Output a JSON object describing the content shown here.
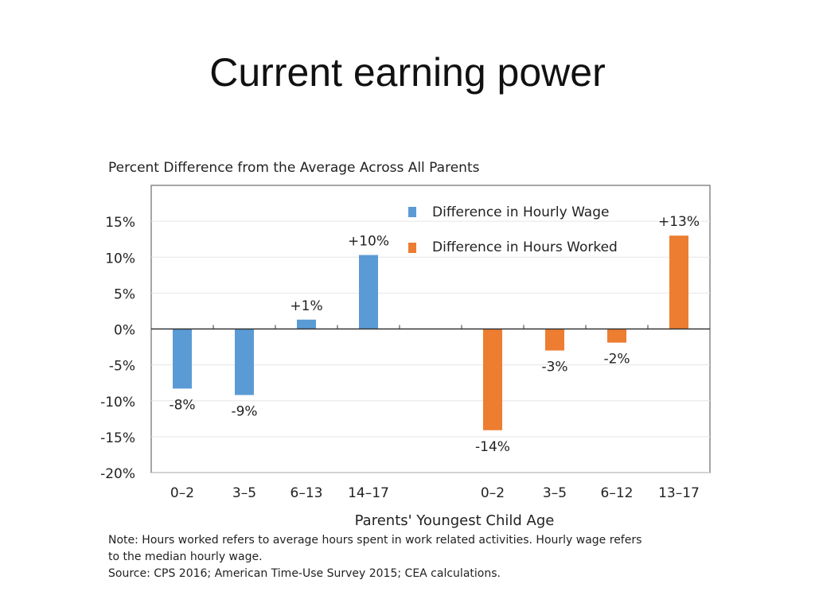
{
  "slide": {
    "title": "Current earning power"
  },
  "chart_data": {
    "type": "bar",
    "title": "Percent Difference from the Average Across All Parents",
    "xlabel": "Parents' Youngest Child Age",
    "ylabel": "",
    "ylim": [
      -20,
      20
    ],
    "yticks": [
      "15%",
      "10%",
      "5%",
      "0%",
      "-5%",
      "-10%",
      "-15%",
      "-20%"
    ],
    "ytick_values": [
      15,
      10,
      5,
      0,
      -5,
      -10,
      -15,
      -20
    ],
    "grid": true,
    "legend_position": "top-right",
    "series": [
      {
        "name": "Difference in Hourly Wage",
        "color": "#5b9bd5",
        "categories": [
          "0–2",
          "3–5",
          "6–13",
          "14–17"
        ],
        "values": [
          -8.3,
          -9.2,
          1.3,
          10.3
        ],
        "labels": [
          "-8%",
          "-9%",
          "+1%",
          "+10%"
        ]
      },
      {
        "name": "Difference in Hours Worked",
        "color": "#ed7d31",
        "categories": [
          "0–2",
          "3–5",
          "6–12",
          "13–17"
        ],
        "values": [
          -14.1,
          -3.0,
          -1.9,
          13.0
        ],
        "labels": [
          "-14%",
          "-3%",
          "-2%",
          "+13%"
        ]
      }
    ]
  },
  "notes": {
    "note_line1": "Note: Hours worked refers to average hours spent in work related activities. Hourly wage refers",
    "note_line2": "to the median hourly wage.",
    "source": "Source: CPS 2016;  American Time-Use Survey 2015; CEA calculations."
  }
}
